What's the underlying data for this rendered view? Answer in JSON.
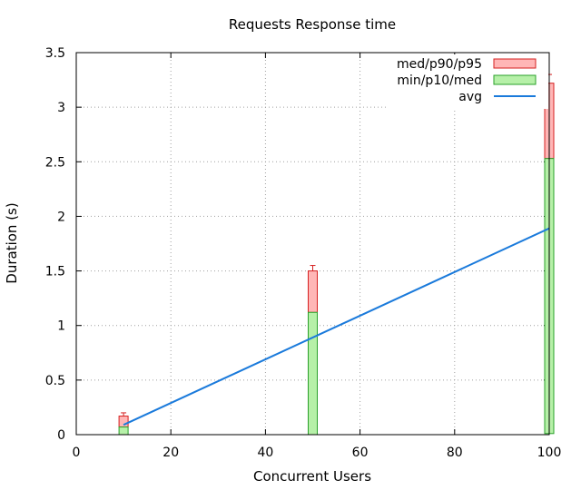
{
  "chart_data": {
    "type": "bar",
    "title": "Requests Response time",
    "xlabel": "Concurrent Users",
    "ylabel": "Duration (s)",
    "xlim": [
      0,
      100
    ],
    "ylim": [
      0,
      3.5
    ],
    "xticks": [
      0,
      20,
      40,
      60,
      80,
      100
    ],
    "xtick_labels": [
      "0",
      "20",
      "40",
      "60",
      "80",
      "100"
    ],
    "yticks": [
      0,
      0.5,
      1,
      1.5,
      2,
      2.5,
      3,
      3.5
    ],
    "ytick_labels": [
      "0",
      "0.5",
      "1",
      "1.5",
      "2",
      "2.5",
      "3",
      "3.5"
    ],
    "grid": true,
    "legend_position": "top-right",
    "series": [
      {
        "name": "med/p90/p95",
        "kind": "box",
        "color": "#ffb6b6",
        "stroke": "#d62020",
        "x": [
          10,
          50,
          100
        ],
        "low": [
          0.07,
          1.12,
          2.53
        ],
        "high": [
          0.17,
          1.5,
          3.22
        ],
        "whisker": [
          0.2,
          1.55,
          3.3
        ]
      },
      {
        "name": "min/p10/med",
        "kind": "box",
        "color": "#b6f0a8",
        "stroke": "#2aa02a",
        "x": [
          10,
          50,
          100
        ],
        "low": [
          0.0,
          0.0,
          0.01
        ],
        "high": [
          0.07,
          1.12,
          2.53
        ]
      },
      {
        "name": "avg",
        "kind": "line",
        "color": "#1a7adb",
        "x": [
          10,
          100
        ],
        "values": [
          0.09,
          1.89
        ]
      }
    ]
  }
}
